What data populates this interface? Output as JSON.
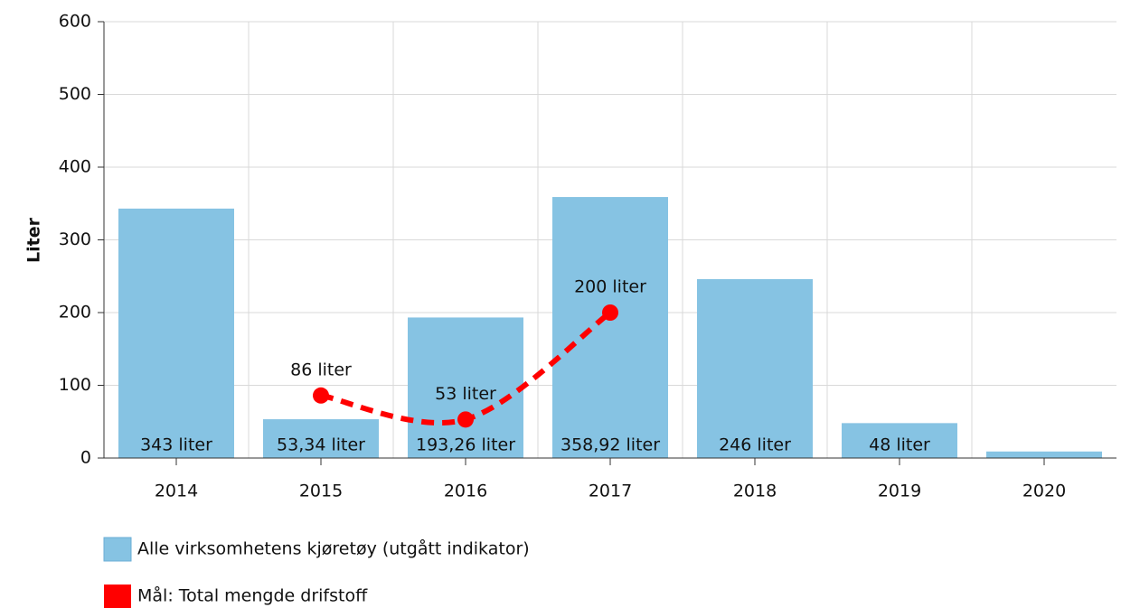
{
  "chart_data": {
    "type": "bar",
    "y_axis_label": "Liter",
    "categories": [
      "2014",
      "2015",
      "2016",
      "2017",
      "2018",
      "2019",
      "2020"
    ],
    "ylim": [
      0,
      600
    ],
    "yticks": [
      0,
      100,
      200,
      300,
      400,
      500,
      600
    ],
    "grid": true,
    "series": [
      {
        "name": "Alle virksomhetens kjøretøy (utgått indikator)",
        "type": "bar",
        "color": "#86c3e3",
        "values": [
          343,
          53.34,
          193.26,
          358.92,
          246,
          48,
          9
        ],
        "value_labels": [
          "343 liter",
          "53,34 liter",
          "193,26 liter",
          "358,92 liter",
          "246 liter",
          "48 liter",
          null
        ]
      },
      {
        "name": "Mål: Total mengde drifstoff",
        "type": "line",
        "color": "#ff0000",
        "values": [
          null,
          86,
          53,
          200,
          null,
          null,
          null
        ],
        "value_labels": [
          null,
          "86 liter",
          "53 liter",
          "200 liter",
          null,
          null,
          null
        ]
      }
    ]
  }
}
